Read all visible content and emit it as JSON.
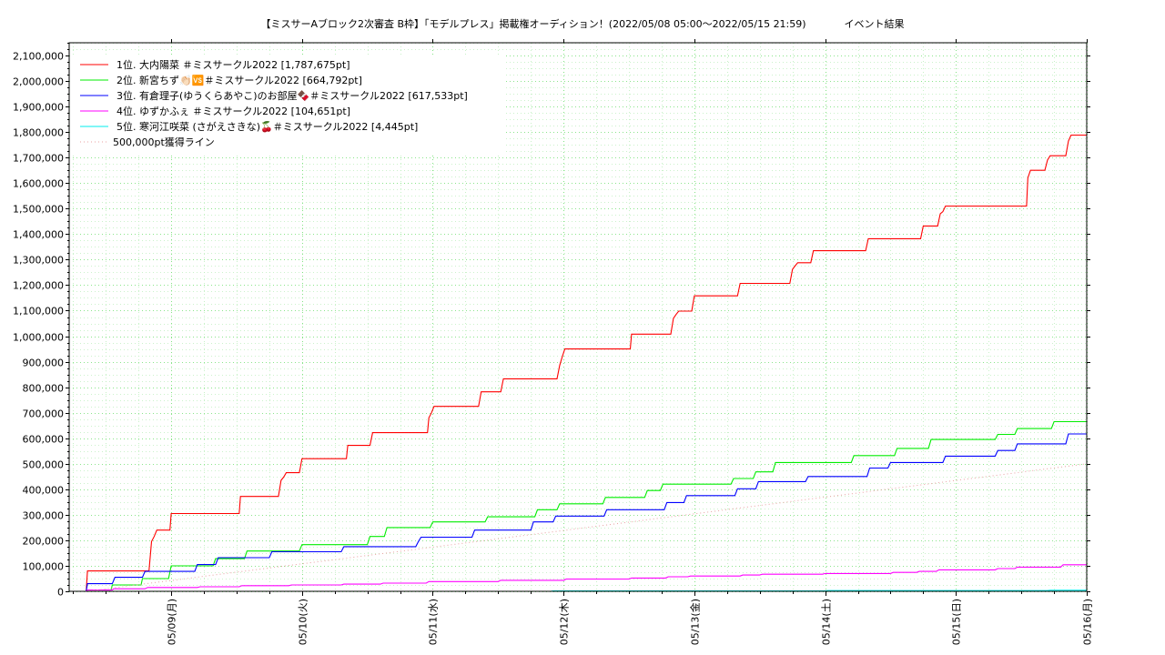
{
  "chart_data": {
    "type": "line",
    "title": "【ミスサーAブロック2次審査 B枠】「モデルプレス」掲載権オーディション！(2022/05/08 05:00〜2022/05/15 21:59)",
    "subtitle": "イベント結果",
    "xlabel": "",
    "ylabel": "",
    "ylim": [
      0,
      2150000
    ],
    "yticks": [
      0,
      100000,
      200000,
      300000,
      400000,
      500000,
      600000,
      700000,
      800000,
      900000,
      1000000,
      1100000,
      1200000,
      1300000,
      1400000,
      1500000,
      1600000,
      1700000,
      1800000,
      1900000,
      2000000,
      2100000
    ],
    "ytick_labels": [
      "0",
      "100,000",
      "200,000",
      "300,000",
      "400,000",
      "500,000",
      "600,000",
      "700,000",
      "800,000",
      "900,000",
      "1,000,000",
      "1,100,000",
      "1,200,000",
      "1,300,000",
      "1,400,000",
      "1,500,000",
      "1,600,000",
      "1,700,000",
      "1,800,000",
      "1,900,000",
      "2,000,000",
      "2,100,000"
    ],
    "x_unit": "days from 05/08 00:00",
    "xlim": [
      0.22,
      8.0
    ],
    "xticks": [
      1,
      2,
      3,
      4,
      5,
      6,
      7,
      8
    ],
    "xtick_labels": [
      "05/09(月)",
      "05/10(火)",
      "05/11(水)",
      "05/12(木)",
      "05/13(金)",
      "05/14(土)",
      "05/15(日)",
      "05/16(月)"
    ],
    "grid": true,
    "legend_position": "top-left",
    "series": [
      {
        "name": "1位. 大内陽菜 ＃ミスサークル2022 [1,787,675pt]",
        "color": "#ff0000",
        "points": [
          [
            0.35,
            0
          ],
          [
            0.36,
            80000
          ],
          [
            0.83,
            80000
          ],
          [
            0.85,
            195000
          ],
          [
            0.87,
            215000
          ],
          [
            0.89,
            240000
          ],
          [
            0.99,
            240000
          ],
          [
            1.0,
            305000
          ],
          [
            1.52,
            305000
          ],
          [
            1.53,
            372000
          ],
          [
            1.82,
            372000
          ],
          [
            1.84,
            435000
          ],
          [
            1.86,
            448000
          ],
          [
            1.88,
            465000
          ],
          [
            1.98,
            465000
          ],
          [
            2.0,
            520000
          ],
          [
            2.34,
            520000
          ],
          [
            2.35,
            572000
          ],
          [
            2.52,
            572000
          ],
          [
            2.54,
            622000
          ],
          [
            2.96,
            622000
          ],
          [
            2.97,
            680000
          ],
          [
            2.99,
            700000
          ],
          [
            3.01,
            725000
          ],
          [
            3.35,
            725000
          ],
          [
            3.37,
            782000
          ],
          [
            3.52,
            782000
          ],
          [
            3.54,
            833000
          ],
          [
            3.95,
            833000
          ],
          [
            3.97,
            885000
          ],
          [
            3.99,
            920000
          ],
          [
            4.01,
            950000
          ],
          [
            4.51,
            950000
          ],
          [
            4.52,
            1008000
          ],
          [
            4.82,
            1008000
          ],
          [
            4.84,
            1070000
          ],
          [
            4.86,
            1085000
          ],
          [
            4.88,
            1098000
          ],
          [
            4.98,
            1098000
          ],
          [
            5.0,
            1158000
          ],
          [
            5.33,
            1158000
          ],
          [
            5.35,
            1207000
          ],
          [
            5.73,
            1207000
          ],
          [
            5.75,
            1262000
          ],
          [
            5.77,
            1275000
          ],
          [
            5.79,
            1288000
          ],
          [
            5.89,
            1288000
          ],
          [
            5.91,
            1335000
          ],
          [
            6.31,
            1335000
          ],
          [
            6.33,
            1382000
          ],
          [
            6.73,
            1382000
          ],
          [
            6.75,
            1432000
          ],
          [
            6.86,
            1432000
          ],
          [
            6.88,
            1480000
          ],
          [
            6.9,
            1488000
          ],
          [
            6.92,
            1510000
          ],
          [
            7.54,
            1510000
          ],
          [
            7.55,
            1620000
          ],
          [
            7.57,
            1650000
          ],
          [
            7.68,
            1650000
          ],
          [
            7.7,
            1690000
          ],
          [
            7.72,
            1707000
          ],
          [
            7.84,
            1707000
          ],
          [
            7.86,
            1765000
          ],
          [
            7.88,
            1788000
          ],
          [
            8.0,
            1788000
          ]
        ]
      },
      {
        "name": "2位. 新宮ちず👏🏻🆚＃ミスサークル2022 [664,792pt]",
        "color": "#00ee00",
        "points": [
          [
            0.35,
            0
          ],
          [
            0.36,
            5000
          ],
          [
            0.54,
            5000
          ],
          [
            0.55,
            25000
          ],
          [
            0.77,
            25000
          ],
          [
            0.78,
            50000
          ],
          [
            0.98,
            50000
          ],
          [
            1.0,
            100000
          ],
          [
            1.32,
            100000
          ],
          [
            1.34,
            128000
          ],
          [
            1.56,
            128000
          ],
          [
            1.58,
            158000
          ],
          [
            1.98,
            158000
          ],
          [
            2.0,
            183000
          ],
          [
            2.5,
            183000
          ],
          [
            2.52,
            215000
          ],
          [
            2.63,
            215000
          ],
          [
            2.65,
            250000
          ],
          [
            2.98,
            250000
          ],
          [
            3.0,
            272000
          ],
          [
            3.4,
            272000
          ],
          [
            3.42,
            292000
          ],
          [
            3.78,
            292000
          ],
          [
            3.8,
            320000
          ],
          [
            3.95,
            320000
          ],
          [
            3.97,
            343000
          ],
          [
            4.3,
            343000
          ],
          [
            4.32,
            368000
          ],
          [
            4.62,
            368000
          ],
          [
            4.64,
            395000
          ],
          [
            4.74,
            395000
          ],
          [
            4.76,
            420000
          ],
          [
            5.28,
            420000
          ],
          [
            5.3,
            442000
          ],
          [
            5.45,
            442000
          ],
          [
            5.47,
            468000
          ],
          [
            5.6,
            468000
          ],
          [
            5.62,
            505000
          ],
          [
            6.2,
            505000
          ],
          [
            6.22,
            532000
          ],
          [
            6.53,
            532000
          ],
          [
            6.55,
            560000
          ],
          [
            6.79,
            560000
          ],
          [
            6.81,
            595000
          ],
          [
            7.3,
            595000
          ],
          [
            7.32,
            615000
          ],
          [
            7.45,
            615000
          ],
          [
            7.47,
            638000
          ],
          [
            7.73,
            638000
          ],
          [
            7.75,
            665000
          ],
          [
            8.0,
            665000
          ]
        ]
      },
      {
        "name": "3位. 有倉理子(ゆうくらあやこ)のお部屋🍫＃ミスサークル2022 [617,533pt]",
        "color": "#0000ff",
        "points": [
          [
            0.35,
            0
          ],
          [
            0.36,
            30000
          ],
          [
            0.55,
            30000
          ],
          [
            0.57,
            55000
          ],
          [
            0.78,
            55000
          ],
          [
            0.8,
            78000
          ],
          [
            1.18,
            78000
          ],
          [
            1.2,
            105000
          ],
          [
            1.34,
            105000
          ],
          [
            1.36,
            132000
          ],
          [
            1.75,
            132000
          ],
          [
            1.77,
            155000
          ],
          [
            2.3,
            155000
          ],
          [
            2.32,
            175000
          ],
          [
            2.87,
            175000
          ],
          [
            2.89,
            195000
          ],
          [
            2.91,
            212000
          ],
          [
            3.3,
            212000
          ],
          [
            3.32,
            240000
          ],
          [
            3.75,
            240000
          ],
          [
            3.77,
            272000
          ],
          [
            3.92,
            272000
          ],
          [
            3.94,
            295000
          ],
          [
            4.31,
            295000
          ],
          [
            4.33,
            320000
          ],
          [
            4.77,
            320000
          ],
          [
            4.79,
            348000
          ],
          [
            4.92,
            348000
          ],
          [
            4.94,
            375000
          ],
          [
            5.31,
            375000
          ],
          [
            5.33,
            402000
          ],
          [
            5.47,
            402000
          ],
          [
            5.49,
            430000
          ],
          [
            5.85,
            430000
          ],
          [
            5.87,
            450000
          ],
          [
            6.32,
            450000
          ],
          [
            6.34,
            483000
          ],
          [
            6.48,
            483000
          ],
          [
            6.5,
            505000
          ],
          [
            6.9,
            505000
          ],
          [
            6.92,
            530000
          ],
          [
            7.3,
            530000
          ],
          [
            7.32,
            552000
          ],
          [
            7.45,
            552000
          ],
          [
            7.47,
            578000
          ],
          [
            7.84,
            578000
          ],
          [
            7.86,
            617000
          ],
          [
            8.0,
            617000
          ]
        ]
      },
      {
        "name": "4位. ゆずかふぇ ＃ミスサークル2022 [104,651pt]",
        "color": "#ff00ff",
        "points": [
          [
            0.35,
            0
          ],
          [
            0.36,
            5000
          ],
          [
            0.55,
            5000
          ],
          [
            0.56,
            10000
          ],
          [
            0.8,
            10000
          ],
          [
            0.82,
            15000
          ],
          [
            1.2,
            15000
          ],
          [
            1.22,
            18000
          ],
          [
            1.52,
            18000
          ],
          [
            1.54,
            22000
          ],
          [
            1.9,
            22000
          ],
          [
            1.92,
            25000
          ],
          [
            2.3,
            25000
          ],
          [
            2.32,
            28000
          ],
          [
            2.6,
            28000
          ],
          [
            2.62,
            32000
          ],
          [
            2.95,
            32000
          ],
          [
            2.97,
            38000
          ],
          [
            3.5,
            38000
          ],
          [
            3.52,
            43000
          ],
          [
            4.0,
            43000
          ],
          [
            4.02,
            48000
          ],
          [
            4.5,
            48000
          ],
          [
            4.52,
            52000
          ],
          [
            4.78,
            52000
          ],
          [
            4.8,
            57000
          ],
          [
            4.95,
            57000
          ],
          [
            4.97,
            60000
          ],
          [
            5.35,
            60000
          ],
          [
            5.37,
            64000
          ],
          [
            5.5,
            64000
          ],
          [
            5.52,
            67000
          ],
          [
            5.98,
            67000
          ],
          [
            6.0,
            70000
          ],
          [
            6.5,
            70000
          ],
          [
            6.52,
            74000
          ],
          [
            6.7,
            74000
          ],
          [
            6.72,
            78000
          ],
          [
            6.85,
            78000
          ],
          [
            6.87,
            84000
          ],
          [
            7.3,
            84000
          ],
          [
            7.32,
            89000
          ],
          [
            7.45,
            89000
          ],
          [
            7.47,
            95000
          ],
          [
            7.8,
            95000
          ],
          [
            7.82,
            104000
          ],
          [
            8.0,
            104000
          ]
        ]
      },
      {
        "name": "5位. 寒河江咲菜 (さがえさきな)🍒＃ミスサークル2022 [4,445pt]",
        "color": "#00eeee",
        "points": [
          [
            0.35,
            0
          ],
          [
            3.9,
            0
          ],
          [
            3.92,
            1500
          ],
          [
            6.0,
            1500
          ],
          [
            6.02,
            3000
          ],
          [
            7.7,
            3000
          ],
          [
            7.72,
            4445
          ],
          [
            8.0,
            4445
          ]
        ]
      },
      {
        "name": "500,000pt獲得ライン",
        "color": "#e8a0a0",
        "dashed": true,
        "points": [
          [
            0.35,
            0
          ],
          [
            8.0,
            500000
          ]
        ]
      }
    ]
  }
}
